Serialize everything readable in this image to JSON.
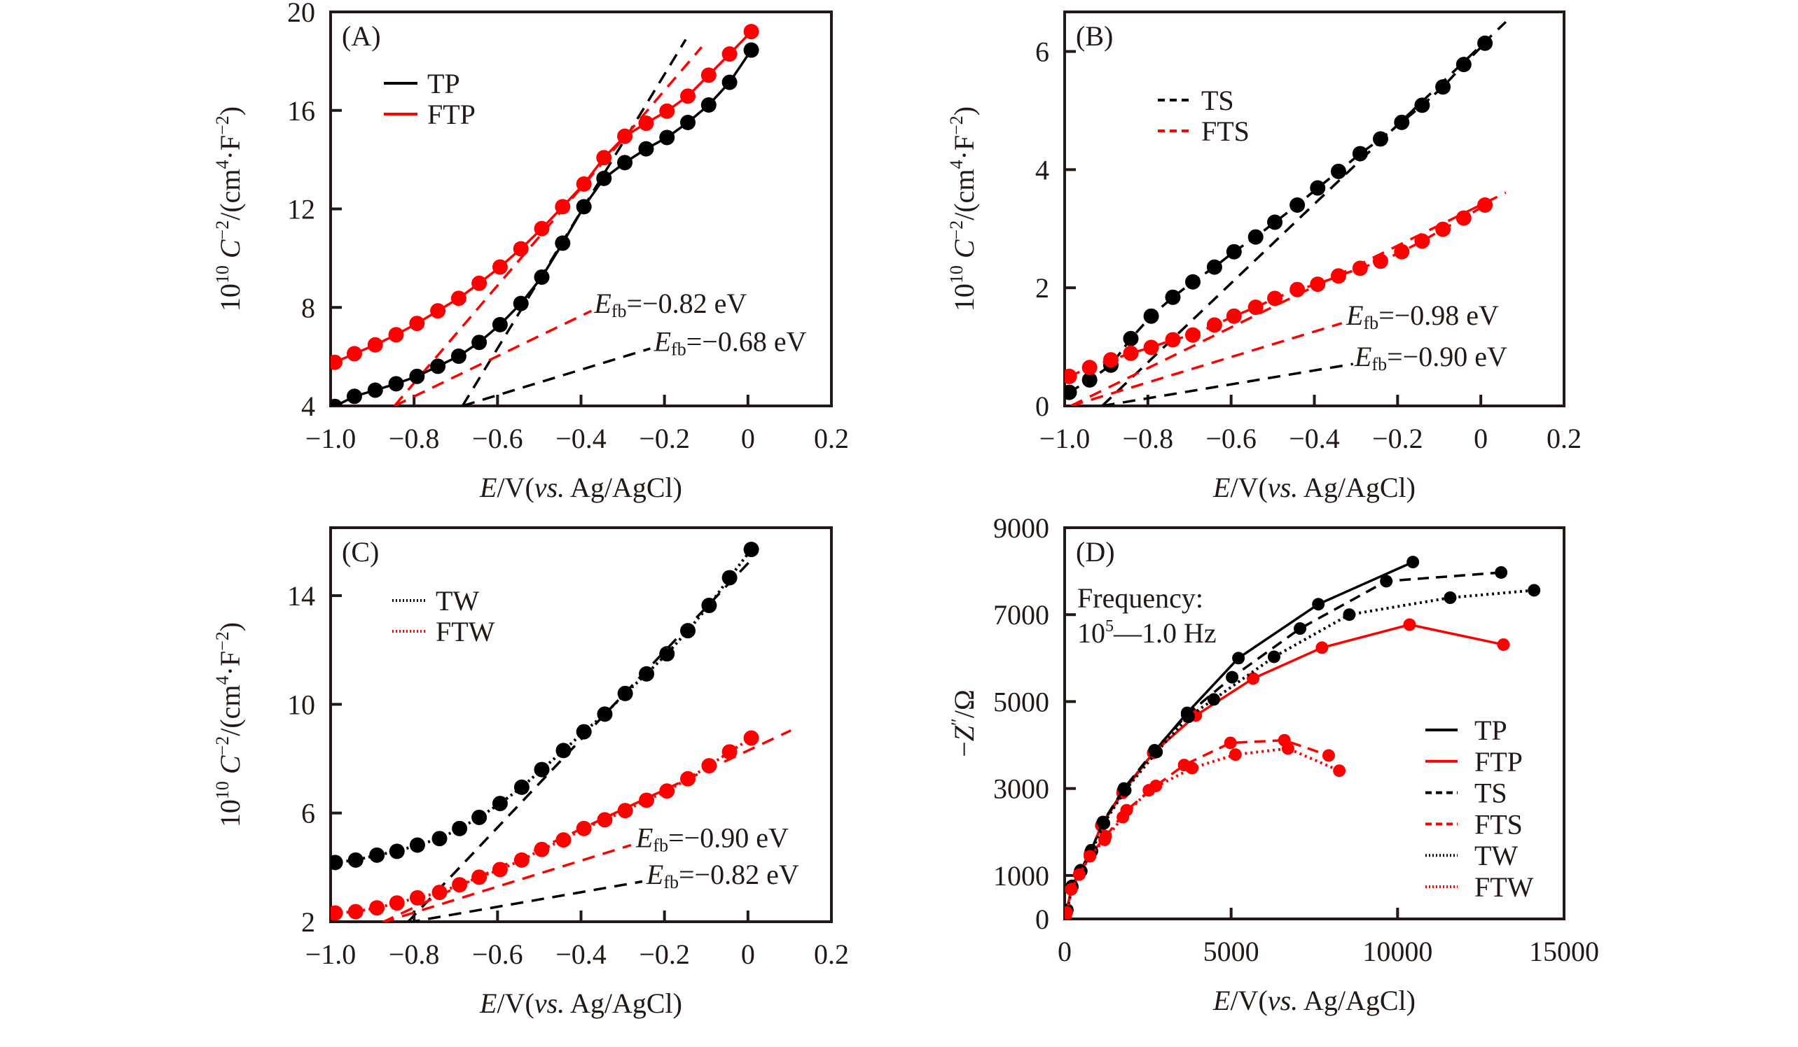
{
  "figure": {
    "colors": {
      "black": "#000000",
      "red": "#ff0000",
      "axis": "#231815"
    }
  },
  "chart_data": [
    {
      "id": "A",
      "type": "line",
      "panel_label": "(A)",
      "xlabel": {
        "italic": "E",
        "mid": "/V(",
        "italic2": "vs.",
        "tail": " Ag/AgCl)"
      },
      "ylabel": {
        "pre": "10",
        "sup1": "10",
        "var": "C",
        "sup2": "−2",
        "mid": "/(cm",
        "sup3": "4",
        "mid2": "·F",
        "sup4": "−2",
        "tail": ")"
      },
      "xlim": [
        -1.0,
        0.2
      ],
      "ylim": [
        4,
        20
      ],
      "xticks": [
        -1.0,
        -0.8,
        -0.6,
        -0.4,
        -0.2,
        0,
        0.2
      ],
      "xtick_labels": [
        "−1.0",
        "−0.8",
        "−0.6",
        "−0.4",
        "−0.2",
        "0",
        "0.2"
      ],
      "yticks": [
        4,
        8,
        12,
        16,
        20
      ],
      "ytick_labels": [
        "4",
        "8",
        "12",
        "16",
        "20"
      ],
      "grid": false,
      "legend_position": "top-left",
      "series": [
        {
          "name": "TP",
          "color": "black",
          "line": "solid",
          "markers": true,
          "x": [
            -0.99,
            -0.943,
            -0.893,
            -0.843,
            -0.793,
            -0.743,
            -0.693,
            -0.644,
            -0.594,
            -0.544,
            -0.494,
            -0.444,
            -0.393,
            -0.345,
            -0.295,
            -0.244,
            -0.194,
            -0.144,
            -0.094,
            -0.044,
            0.008
          ],
          "y": [
            3.98,
            4.39,
            4.64,
            4.9,
            5.2,
            5.61,
            6.02,
            6.58,
            7.3,
            8.16,
            9.23,
            10.61,
            12.09,
            13.24,
            13.88,
            14.44,
            14.9,
            15.51,
            16.22,
            17.14,
            18.45
          ]
        },
        {
          "name": "FTP",
          "color": "red",
          "line": "solid",
          "markers": true,
          "x": [
            -0.99,
            -0.943,
            -0.893,
            -0.843,
            -0.793,
            -0.743,
            -0.693,
            -0.644,
            -0.594,
            -0.544,
            -0.494,
            -0.444,
            -0.393,
            -0.345,
            -0.295,
            -0.244,
            -0.194,
            -0.144,
            -0.094,
            -0.044,
            0.008
          ],
          "y": [
            5.77,
            6.12,
            6.48,
            6.89,
            7.35,
            7.86,
            8.37,
            8.98,
            9.64,
            10.38,
            11.2,
            12.09,
            13.01,
            14.08,
            14.95,
            15.48,
            15.97,
            16.58,
            17.43,
            18.29,
            19.2
          ]
        }
      ],
      "fits": [
        {
          "color": "black",
          "x": [
            -0.684,
            -0.149
          ],
          "y": [
            4.0,
            18.88
          ]
        },
        {
          "color": "black",
          "x": [
            -0.684,
            -0.234
          ],
          "y": [
            4.0,
            6.33
          ]
        },
        {
          "color": "red",
          "x": [
            -0.847,
            -0.111
          ],
          "y": [
            4.0,
            18.57
          ]
        },
        {
          "color": "red",
          "x": [
            -0.847,
            -0.375
          ],
          "y": [
            4.0,
            7.86
          ]
        }
      ],
      "annotations": [
        {
          "var": "E",
          "sub": "fb",
          "text": "=−0.82 eV",
          "x": -0.375,
          "y": 7.9
        },
        {
          "var": "E",
          "sub": "fb",
          "text": "=−0.68 eV",
          "x": -0.232,
          "y": 6.35
        }
      ]
    },
    {
      "id": "B",
      "type": "line",
      "panel_label": "(B)",
      "xlabel": {
        "italic": "E",
        "mid": "/V(",
        "italic2": "vs.",
        "tail": " Ag/AgCl)"
      },
      "ylabel": {
        "pre": "10",
        "sup1": "10",
        "var": "C",
        "sup2": "−2",
        "mid": "/(cm",
        "sup3": "4",
        "mid2": "·F",
        "sup4": "−2",
        "tail": ")"
      },
      "xlim": [
        -1.0,
        0.2
      ],
      "ylim": [
        0,
        6.67
      ],
      "xticks": [
        -1.0,
        -0.8,
        -0.6,
        -0.4,
        -0.2,
        0,
        0.2
      ],
      "xtick_labels": [
        "−1.0",
        "−0.8",
        "−0.6",
        "−0.4",
        "−0.2",
        "0",
        "0.2"
      ],
      "yticks": [
        0,
        2,
        4,
        6
      ],
      "ytick_labels": [
        "0",
        "2",
        "4",
        "6"
      ],
      "grid": false,
      "legend_position": "top-left",
      "series": [
        {
          "name": "TS",
          "color": "black",
          "line": "dashed",
          "markers": true,
          "x": [
            -0.989,
            -0.94,
            -0.889,
            -0.841,
            -0.792,
            -0.74,
            -0.692,
            -0.64,
            -0.593,
            -0.541,
            -0.495,
            -0.441,
            -0.392,
            -0.342,
            -0.29,
            -0.241,
            -0.19,
            -0.141,
            -0.091,
            -0.041,
            0.01
          ],
          "y": [
            0.23,
            0.44,
            0.69,
            1.14,
            1.52,
            1.84,
            2.1,
            2.35,
            2.61,
            2.86,
            3.11,
            3.4,
            3.69,
            3.97,
            4.27,
            4.52,
            4.8,
            5.09,
            5.4,
            5.78,
            6.14
          ]
        },
        {
          "name": "FTS",
          "color": "red",
          "line": "dashed",
          "markers": true,
          "x": [
            -0.989,
            -0.94,
            -0.889,
            -0.841,
            -0.792,
            -0.74,
            -0.692,
            -0.64,
            -0.593,
            -0.541,
            -0.495,
            -0.441,
            -0.392,
            -0.342,
            -0.29,
            -0.241,
            -0.19,
            -0.141,
            -0.091,
            -0.041,
            0.01
          ],
          "y": [
            0.5,
            0.65,
            0.78,
            0.89,
            0.99,
            1.12,
            1.2,
            1.37,
            1.52,
            1.67,
            1.82,
            1.97,
            2.06,
            2.2,
            2.33,
            2.45,
            2.61,
            2.79,
            2.99,
            3.18,
            3.4
          ]
        }
      ],
      "fits": [
        {
          "color": "black",
          "x": [
            -0.91,
            0.06
          ],
          "y": [
            0.0,
            6.5
          ]
        },
        {
          "color": "black",
          "x": [
            -0.91,
            -0.307
          ],
          "y": [
            0.0,
            0.71
          ]
        },
        {
          "color": "red",
          "x": [
            -0.985,
            0.06
          ],
          "y": [
            0.0,
            3.61
          ]
        },
        {
          "color": "red",
          "x": [
            -0.985,
            -0.334
          ],
          "y": [
            0.0,
            1.4
          ]
        }
      ],
      "annotations": [
        {
          "var": "E",
          "sub": "fb",
          "text": "=−0.98 eV",
          "x": -0.33,
          "y": 1.42
        },
        {
          "var": "E",
          "sub": "fb",
          "text": "=−0.90 eV",
          "x": -0.31,
          "y": 0.72
        }
      ]
    },
    {
      "id": "C",
      "type": "line",
      "panel_label": "(C)",
      "xlabel": {
        "italic": "E",
        "mid": "/V(",
        "italic2": "vs.",
        "tail": " Ag/AgCl)"
      },
      "ylabel": {
        "pre": "10",
        "sup1": "10",
        "var": "C",
        "sup2": "−2",
        "mid": "/(cm",
        "sup3": "4",
        "mid2": "·F",
        "sup4": "−2",
        "tail": ")"
      },
      "xlim": [
        -1.0,
        0.2
      ],
      "ylim": [
        2,
        16.5
      ],
      "xticks": [
        -1.0,
        -0.8,
        -0.6,
        -0.4,
        -0.2,
        0,
        0.2
      ],
      "xtick_labels": [
        "−1.0",
        "−0.8",
        "−0.6",
        "−0.4",
        "−0.2",
        "0",
        "0.2"
      ],
      "yticks": [
        2,
        6,
        10,
        14
      ],
      "ytick_labels": [
        "2",
        "6",
        "10",
        "14"
      ],
      "grid": false,
      "legend_position": "top-left",
      "series": [
        {
          "name": "TW",
          "color": "black",
          "line": "dotted",
          "markers": true,
          "x": [
            -0.989,
            -0.94,
            -0.889,
            -0.841,
            -0.792,
            -0.739,
            -0.691,
            -0.644,
            -0.594,
            -0.542,
            -0.494,
            -0.442,
            -0.393,
            -0.343,
            -0.294,
            -0.243,
            -0.194,
            -0.144,
            -0.093,
            -0.044,
            0.008
          ],
          "y": [
            4.18,
            4.27,
            4.45,
            4.59,
            4.82,
            5.06,
            5.43,
            5.84,
            6.35,
            6.95,
            7.6,
            8.3,
            8.99,
            9.64,
            10.4,
            11.12,
            11.86,
            12.71,
            13.64,
            14.66,
            15.7
          ]
        },
        {
          "name": "FTW",
          "color": "red",
          "line": "dotted",
          "markers": true,
          "x": [
            -0.989,
            -0.94,
            -0.889,
            -0.841,
            -0.792,
            -0.739,
            -0.691,
            -0.644,
            -0.594,
            -0.542,
            -0.494,
            -0.442,
            -0.393,
            -0.343,
            -0.294,
            -0.243,
            -0.194,
            -0.144,
            -0.093,
            -0.044,
            0.008
          ],
          "y": [
            2.32,
            2.37,
            2.51,
            2.69,
            2.88,
            3.08,
            3.36,
            3.64,
            3.92,
            4.27,
            4.66,
            5.01,
            5.43,
            5.75,
            6.09,
            6.47,
            6.81,
            7.26,
            7.74,
            8.25,
            8.76
          ]
        }
      ],
      "fits": [
        {
          "color": "black",
          "x": [
            -0.816,
            0.015
          ],
          "y": [
            1.97,
            15.43
          ]
        },
        {
          "color": "black",
          "x": [
            -0.816,
            -0.253
          ],
          "y": [
            1.97,
            3.48
          ]
        },
        {
          "color": "red",
          "x": [
            -0.877,
            0.103
          ],
          "y": [
            1.97,
            9.04
          ]
        },
        {
          "color": "red",
          "x": [
            -0.877,
            -0.28
          ],
          "y": [
            1.97,
            4.82
          ]
        }
      ],
      "annotations": [
        {
          "var": "E",
          "sub": "fb",
          "text": "=−0.90 eV",
          "x": -0.275,
          "y": 4.85
        },
        {
          "var": "E",
          "sub": "fb",
          "text": "=−0.82 eV",
          "x": -0.25,
          "y": 3.5
        }
      ]
    },
    {
      "id": "D",
      "type": "line",
      "panel_label": "(D)",
      "xlabel": {
        "italic": "E",
        "mid": "/V(",
        "italic2": "vs.",
        "tail": " Ag/AgCl)"
      },
      "ylabel_simple": {
        "pre": "−",
        "var": "Z",
        "prime": "″",
        "tail": "/Ω"
      },
      "xlim": [
        0,
        15000
      ],
      "ylim": [
        0,
        9000
      ],
      "xticks": [
        0,
        5000,
        10000,
        15000
      ],
      "xtick_labels": [
        "0",
        "5000",
        "10000",
        "15000"
      ],
      "yticks": [
        0,
        1000,
        3000,
        5000,
        7000,
        9000
      ],
      "ytick_labels": [
        "0",
        "1000",
        "3000",
        "5000",
        "7000",
        "9000"
      ],
      "grid": false,
      "legend_position": "bottom-right",
      "note": {
        "line1": "Frequency:",
        "line2_pre": "10",
        "line2_sup": "5",
        "line2_tail": "—1.0 Hz"
      },
      "series": [
        {
          "name": "TP",
          "color": "black",
          "line": "solid",
          "markers": true,
          "x": [
            30,
            70,
            210,
            460,
            780,
            1120,
            1750,
            2660,
            3680,
            5220,
            7620,
            10460
          ],
          "y": [
            80,
            200,
            740,
            1090,
            1540,
            2180,
            2940,
            3820,
            4740,
            6000,
            7240,
            8210
          ]
        },
        {
          "name": "FTP",
          "color": "red",
          "line": "solid",
          "markers": true,
          "x": [
            20,
            60,
            200,
            450,
            760,
            1100,
            1740,
            2660,
            3940,
            5660,
            7730,
            10360,
            13180
          ],
          "y": [
            60,
            150,
            700,
            1050,
            1500,
            2150,
            2900,
            3820,
            4680,
            5530,
            6240,
            6770,
            6310
          ]
        },
        {
          "name": "TS",
          "color": "black",
          "line": "dashed",
          "markers": true,
          "x": [
            30,
            80,
            220,
            480,
            800,
            1150,
            1780,
            2700,
            3680,
            5030,
            7070,
            9660,
            13110
          ],
          "y": [
            90,
            210,
            760,
            1120,
            1580,
            2230,
            3000,
            3880,
            4700,
            5560,
            6680,
            7770,
            7970
          ]
        },
        {
          "name": "FTS",
          "color": "red",
          "line": "dashed",
          "markers": true,
          "x": [
            20,
            60,
            200,
            440,
            760,
            1230,
            1860,
            2740,
            3590,
            4980,
            6600,
            7930
          ],
          "y": [
            60,
            150,
            690,
            1030,
            1460,
            1900,
            2500,
            3060,
            3540,
            4050,
            4110,
            3760
          ]
        },
        {
          "name": "TW",
          "color": "black",
          "line": "dotted",
          "markers": true,
          "x": [
            30,
            80,
            230,
            500,
            820,
            1180,
            1820,
            2760,
            3720,
            4480,
            6290,
            8550,
            11580,
            14100
          ],
          "y": [
            90,
            200,
            740,
            1100,
            1560,
            2200,
            2960,
            3840,
            4650,
            5050,
            6030,
            7000,
            7390,
            7560
          ]
        },
        {
          "name": "FTW",
          "color": "red",
          "line": "dotted",
          "markers": true,
          "x": [
            20,
            60,
            200,
            440,
            760,
            1200,
            1750,
            2530,
            3830,
            5130,
            6710,
            8250
          ],
          "y": [
            60,
            150,
            680,
            1020,
            1440,
            1820,
            2340,
            2960,
            3470,
            3780,
            3920,
            3410
          ]
        }
      ]
    }
  ]
}
